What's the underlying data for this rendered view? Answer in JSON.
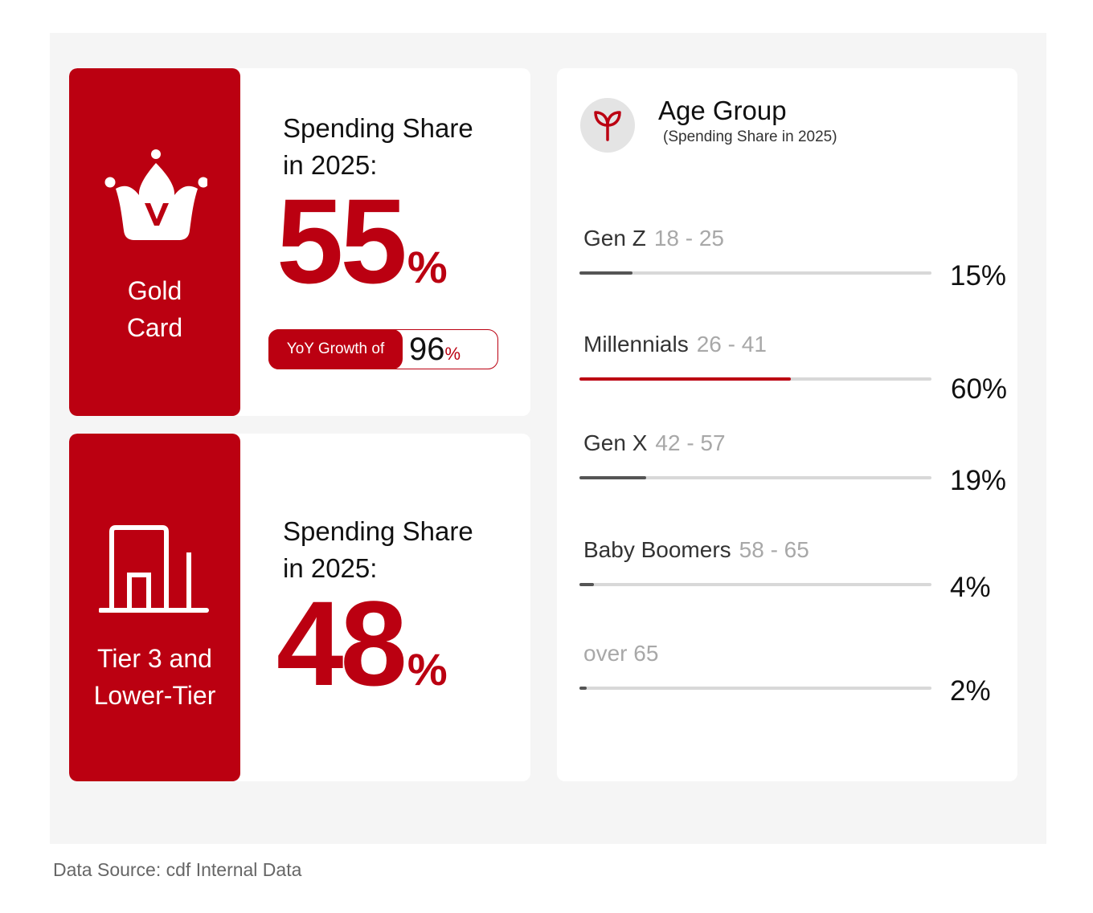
{
  "gold_card": {
    "label_line1": "Gold",
    "label_line2": "Card",
    "icon": "crown-v-icon",
    "title_line1": "Spending Share",
    "title_line2": "in 2025:",
    "value": "55",
    "unit": "%",
    "yoy_label": "YoY Growth of",
    "yoy_value": "96",
    "yoy_unit": "%"
  },
  "tier_card": {
    "label_line1": "Tier 3 and",
    "label_line2": "Lower-Tier",
    "icon": "building-icon",
    "title_line1": "Spending Share",
    "title_line2": "in 2025:",
    "value": "48",
    "unit": "%"
  },
  "age_group": {
    "icon": "sprout-icon",
    "title": "Age Group",
    "subtitle": "(Spending Share in 2025)"
  },
  "chart_data": {
    "type": "bar",
    "title": "Age Group",
    "subtitle": "(Spending Share in 2025)",
    "orientation": "horizontal",
    "ylim": [
      0,
      100
    ],
    "categories": [
      {
        "name": "Gen Z",
        "range": "18 - 25",
        "value": 15,
        "label": "15%"
      },
      {
        "name": "Millennials",
        "range": "26 - 41",
        "value": 60,
        "label": "60%",
        "highlight": true
      },
      {
        "name": "Gen X",
        "range": "42 - 57",
        "value": 19,
        "label": "19%"
      },
      {
        "name": "Baby Boomers",
        "range": "58 - 65",
        "value": 4,
        "label": "4%"
      },
      {
        "name": "",
        "range": "over 65",
        "value": 2,
        "label": "2%"
      }
    ],
    "colors": {
      "highlight": "#bb0011",
      "default": "#555555",
      "track": "#d8d8d8"
    }
  },
  "colors": {
    "brand_red": "#bb0011",
    "panel_bg": "#f5f5f5"
  },
  "footer": {
    "source": "Data Source: cdf Internal Data"
  }
}
